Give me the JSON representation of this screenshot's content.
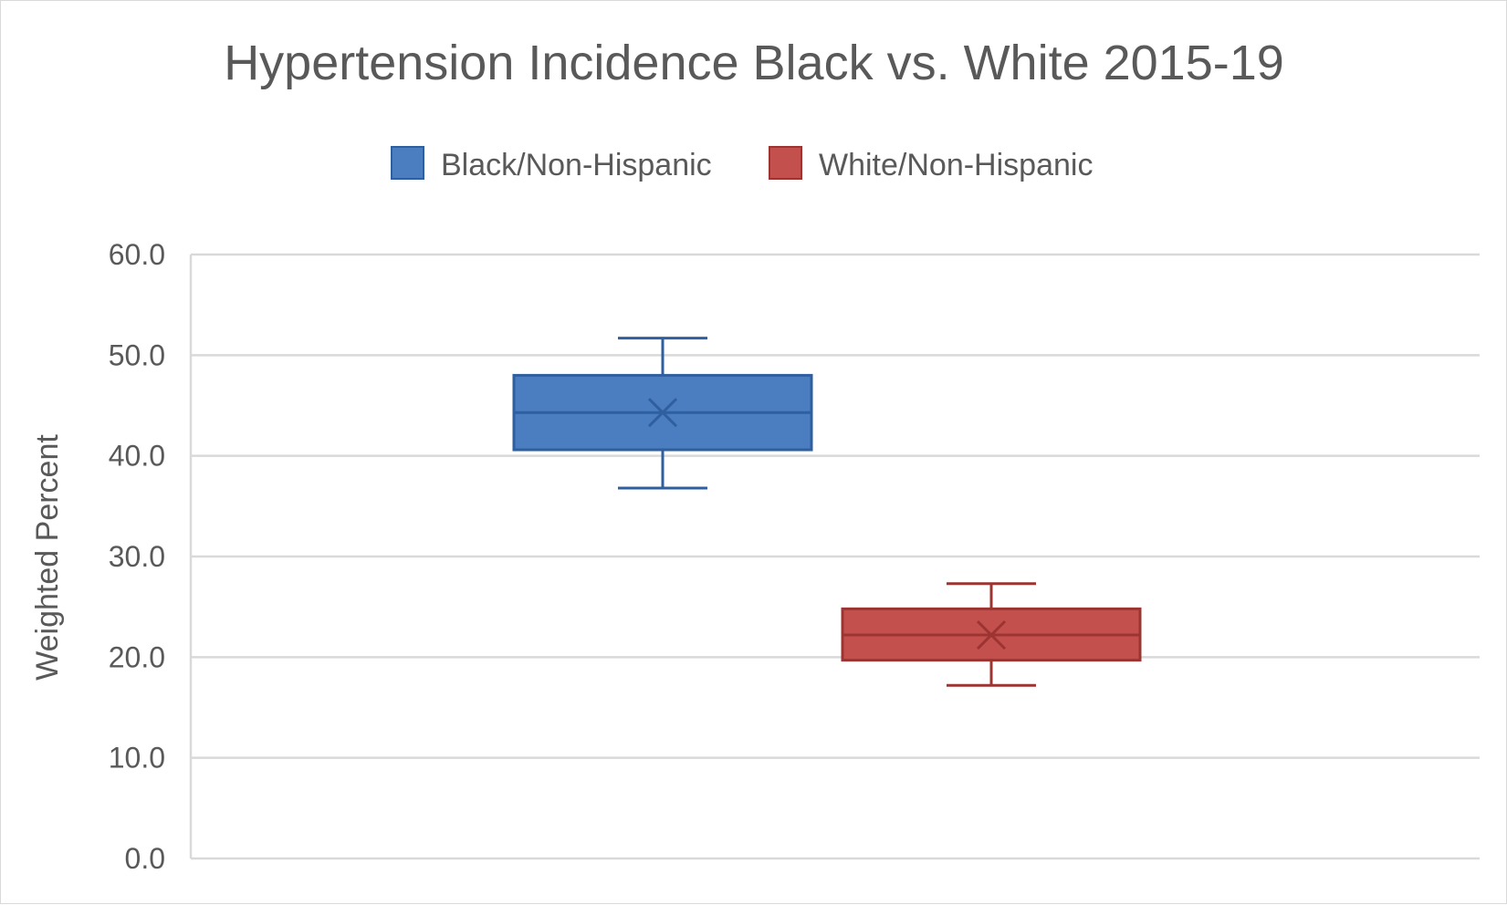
{
  "chart_data": {
    "type": "box",
    "title": "Hypertension Incidence Black vs. White 2015-19",
    "xlabel": "",
    "ylabel": "Weighted Percent",
    "ylim": [
      0,
      60
    ],
    "y_ticks": [
      "0.0",
      "10.0",
      "20.0",
      "30.0",
      "40.0",
      "50.0",
      "60.0"
    ],
    "grid": "horizontal",
    "legend_position": "top",
    "series": [
      {
        "name": "Black/Non-Hispanic",
        "color": "#4A7EC1",
        "edge_color": "#2F5F9E",
        "min": 36.8,
        "q1": 40.6,
        "median": 44.3,
        "q3": 48.0,
        "max": 51.7,
        "mean": 44.3
      },
      {
        "name": "White/Non-Hispanic",
        "color": "#C4504D",
        "edge_color": "#9C3431",
        "min": 17.2,
        "q1": 19.7,
        "median": 22.2,
        "q3": 24.8,
        "max": 27.3,
        "mean": 22.2
      }
    ]
  }
}
